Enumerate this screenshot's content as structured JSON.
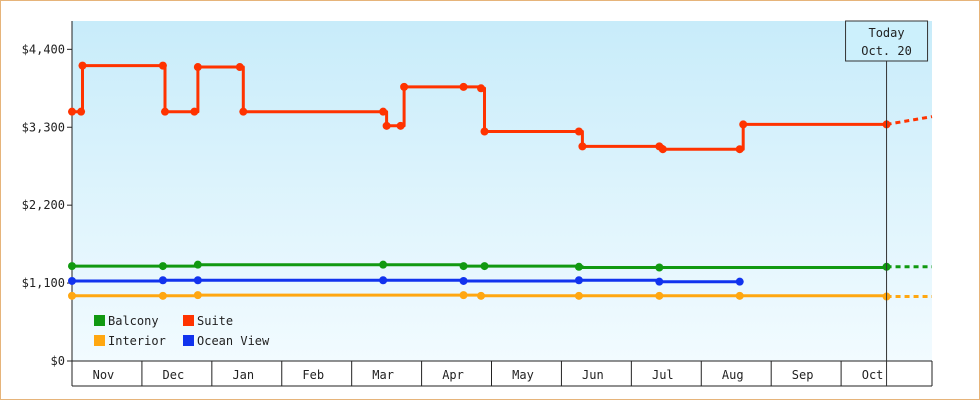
{
  "chart_data": {
    "type": "line",
    "title": "",
    "xlabel": "",
    "ylabel": "",
    "ylim": [
      0,
      4800
    ],
    "yticks": [
      {
        "value": 0,
        "label": "$0"
      },
      {
        "value": 1100,
        "label": "$1,100"
      },
      {
        "value": 2200,
        "label": "$2,200"
      },
      {
        "value": 3300,
        "label": "$3,300"
      },
      {
        "value": 4400,
        "label": "$4,400"
      }
    ],
    "xlim": [
      0,
      12.3
    ],
    "months": [
      "Nov",
      "Dec",
      "Jan",
      "Feb",
      "Mar",
      "Apr",
      "May",
      "Jun",
      "Jul",
      "Aug",
      "Sep",
      "Oct"
    ],
    "today": {
      "label1": "Today",
      "label2": "Oct. 20",
      "x": 11.65
    },
    "grid": false,
    "legend_placement": "bottom-left",
    "series": [
      {
        "name": "Suite",
        "color": "#ff3300",
        "style": "step",
        "points": [
          [
            0,
            3520
          ],
          [
            0.13,
            3520
          ],
          [
            0.15,
            4170
          ],
          [
            1.3,
            4170
          ],
          [
            1.33,
            3520
          ],
          [
            1.75,
            3520
          ],
          [
            1.8,
            4150
          ],
          [
            2.4,
            4150
          ],
          [
            2.45,
            3520
          ],
          [
            4.45,
            3520
          ],
          [
            4.5,
            3320
          ],
          [
            4.7,
            3320
          ],
          [
            4.75,
            3870
          ],
          [
            5.6,
            3870
          ],
          [
            5.85,
            3850
          ],
          [
            5.9,
            3240
          ],
          [
            7.25,
            3240
          ],
          [
            7.3,
            3030
          ],
          [
            8.4,
            3030
          ],
          [
            8.45,
            2990
          ],
          [
            9.55,
            2990
          ],
          [
            9.6,
            3340
          ],
          [
            11.65,
            3340
          ]
        ],
        "markers": [
          0,
          1,
          2,
          3,
          4,
          5,
          6,
          7,
          8,
          9,
          10,
          11,
          12,
          13,
          14,
          15,
          16,
          17,
          18,
          19,
          20,
          21,
          22
        ],
        "forecast": [
          [
            11.65,
            3340
          ],
          [
            12.3,
            3450
          ]
        ]
      },
      {
        "name": "Balcony",
        "color": "#119911",
        "style": "step",
        "points": [
          [
            0,
            1340
          ],
          [
            1.3,
            1340
          ],
          [
            1.8,
            1360
          ],
          [
            4.45,
            1360
          ],
          [
            5.6,
            1340
          ],
          [
            5.9,
            1340
          ],
          [
            7.25,
            1330
          ],
          [
            7.3,
            1320
          ],
          [
            8.4,
            1320
          ],
          [
            11.65,
            1330
          ]
        ],
        "markers": [
          0,
          1,
          2,
          3,
          4,
          5,
          6,
          8,
          9
        ],
        "forecast": [
          [
            11.65,
            1330
          ],
          [
            12.3,
            1330
          ]
        ]
      },
      {
        "name": "Ocean View",
        "color": "#1133ee",
        "style": "step",
        "points": [
          [
            0,
            1130
          ],
          [
            1.3,
            1140
          ],
          [
            1.8,
            1140
          ],
          [
            4.45,
            1140
          ],
          [
            5.6,
            1130
          ],
          [
            7.25,
            1140
          ],
          [
            8.4,
            1120
          ],
          [
            9.55,
            1120
          ]
        ],
        "markers": [
          0,
          1,
          2,
          3,
          4,
          5,
          6,
          7
        ],
        "forecast": []
      },
      {
        "name": "Interior",
        "color": "#ffa711",
        "style": "step",
        "points": [
          [
            0,
            920
          ],
          [
            1.3,
            920
          ],
          [
            1.8,
            930
          ],
          [
            4.45,
            930
          ],
          [
            5.6,
            930
          ],
          [
            5.85,
            920
          ],
          [
            7.25,
            920
          ],
          [
            8.4,
            920
          ],
          [
            9.55,
            920
          ],
          [
            11.65,
            910
          ]
        ],
        "markers": [
          0,
          1,
          2,
          4,
          5,
          6,
          7,
          8,
          9
        ],
        "forecast": [
          [
            11.65,
            910
          ],
          [
            12.3,
            910
          ]
        ]
      }
    ],
    "legend": [
      {
        "name": "Balcony",
        "color": "#119911"
      },
      {
        "name": "Suite",
        "color": "#ff3300"
      },
      {
        "name": "Interior",
        "color": "#ffa711"
      },
      {
        "name": "Ocean View",
        "color": "#1133ee"
      }
    ]
  }
}
